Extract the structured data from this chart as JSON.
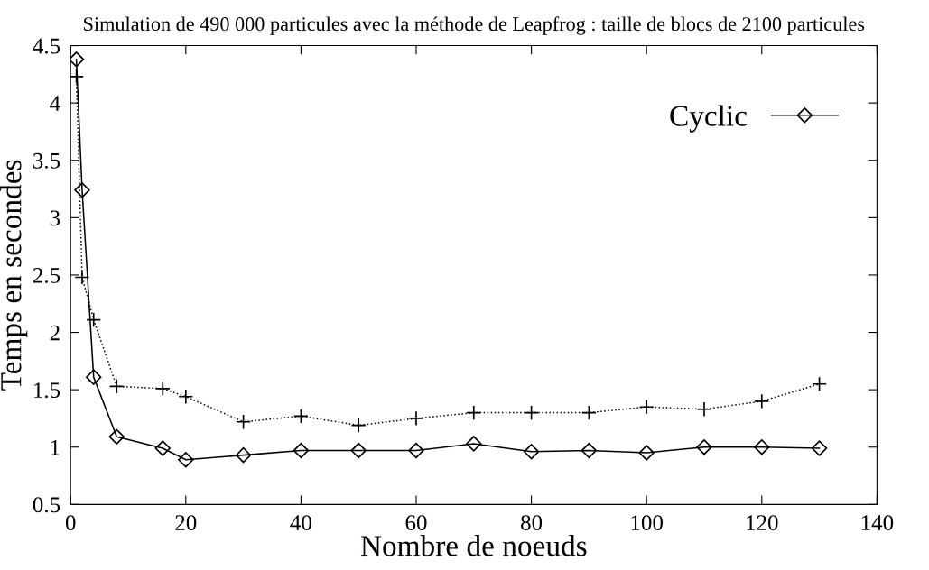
{
  "chart_data": {
    "type": "line",
    "title": "Simulation de 490 000 particules avec la méthode de Leapfrog : taille de blocs de 2100 particules",
    "xlabel": "Nombre de noeuds",
    "ylabel": "Temps en secondes",
    "x": [
      1,
      2,
      4,
      8,
      16,
      20,
      30,
      40,
      50,
      60,
      70,
      80,
      90,
      100,
      110,
      120,
      130
    ],
    "series": [
      {
        "name": "Cyclic",
        "color": "#000000",
        "marker": "diamond",
        "line_style": "solid",
        "values": [
          4.38,
          3.24,
          1.61,
          1.09,
          0.99,
          0.89,
          0.93,
          0.97,
          0.97,
          0.97,
          1.03,
          0.96,
          0.97,
          0.95,
          1.0,
          1.0,
          0.99
        ]
      },
      {
        "color": "#000000",
        "marker": "cross",
        "line_style": "dotted",
        "values": [
          4.23,
          2.48,
          2.11,
          1.53,
          1.51,
          1.44,
          1.22,
          1.27,
          1.19,
          1.25,
          1.3,
          1.3,
          1.3,
          1.35,
          1.33,
          1.4,
          1.55
        ]
      }
    ],
    "xlim": [
      0,
      140
    ],
    "xticks": [
      0,
      20,
      40,
      60,
      80,
      100,
      120,
      140
    ],
    "ylim": [
      0.5,
      4.5
    ],
    "yticks": [
      0.5,
      1,
      1.5,
      2,
      2.5,
      3,
      3.5,
      4,
      4.5
    ],
    "grid": false,
    "legend": "top right"
  }
}
